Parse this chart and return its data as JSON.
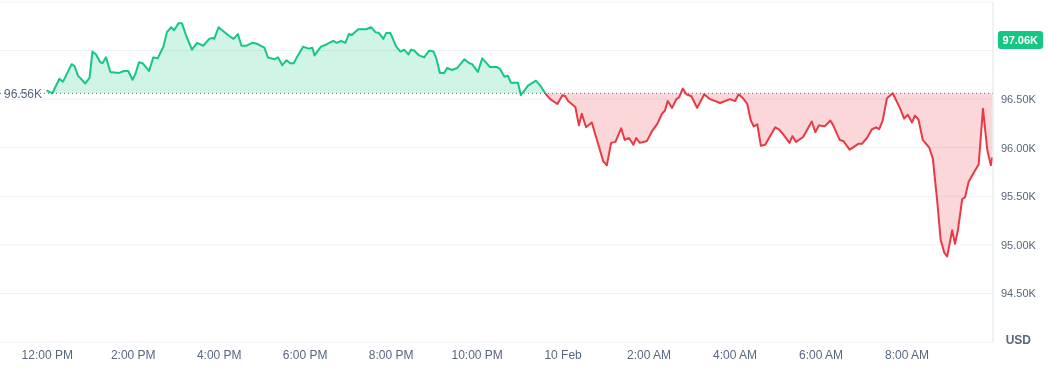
{
  "chart_data": {
    "type": "area",
    "ylabel": "USD",
    "grid": "y",
    "xlim": [
      "--02-09T10:54",
      "--02-10T10:00"
    ],
    "ylim": [
      94.0,
      97.5
    ],
    "xticks": [
      {
        "value": "--02-09T12:00",
        "label": "12:00 PM"
      },
      {
        "value": "--02-09T14:00",
        "label": "2:00 PM"
      },
      {
        "value": "--02-09T16:00",
        "label": "4:00 PM"
      },
      {
        "value": "--02-09T18:00",
        "label": "6:00 PM"
      },
      {
        "value": "--02-09T20:00",
        "label": "8:00 PM"
      },
      {
        "value": "--02-09T22:00",
        "label": "10:00 PM"
      },
      {
        "value": "--02-10T00:00",
        "label": "10 Feb"
      },
      {
        "value": "--02-10T02:00",
        "label": "2:00 AM"
      },
      {
        "value": "--02-10T04:00",
        "label": "4:00 AM"
      },
      {
        "value": "--02-10T06:00",
        "label": "6:00 AM"
      },
      {
        "value": "--02-10T08:00",
        "label": "8:00 AM"
      }
    ],
    "yticks": [
      {
        "value": 94.5,
        "label": "94.50K"
      },
      {
        "value": 95,
        "label": "95.00K"
      },
      {
        "value": 95.5,
        "label": "95.50K"
      },
      {
        "value": 96,
        "label": "96.00K"
      },
      {
        "value": 96.5,
        "label": "96.50K"
      },
      {
        "value": 97,
        "label": null
      }
    ],
    "ref_lines": [
      {
        "axis": "y",
        "value": 96.56,
        "label": "96.56K",
        "color": "#58667e",
        "line_style": "dotted"
      }
    ],
    "annotations": [
      "97.06K"
    ],
    "series": [
      {
        "color": "#16c784",
        "x": [
          "--02-09T11:59",
          "--02-09T12:07",
          "--02-09T12:17",
          "--02-09T12:22",
          "--02-09T12:34",
          "--02-09T12:38",
          "--02-09T12:43",
          "--02-09T12:47",
          "--02-09T12:53",
          "--02-09T12:59",
          "--02-09T13:03",
          "--02-09T13:08",
          "--02-09T13:14",
          "--02-09T13:17",
          "--02-09T13:22",
          "--02-09T13:28",
          "--02-09T13:40",
          "--02-09T13:47",
          "--02-09T13:53",
          "--02-09T13:59",
          "--02-09T14:03",
          "--02-09T14:08",
          "--02-09T14:13",
          "--02-09T14:20",
          "--02-09T14:22",
          "--02-09T14:28",
          "--02-09T14:34",
          "--02-09T14:42",
          "--02-09T14:47",
          "--02-09T14:53",
          "--02-09T14:57",
          "--02-09T15:03",
          "--02-09T15:08",
          "--02-09T15:14",
          "--02-09T15:22",
          "--02-09T15:29",
          "--02-09T15:38",
          "--02-09T15:46",
          "--02-09T15:50",
          "--02-09T15:53",
          "--02-09T15:59",
          "--02-09T16:04",
          "--02-09T16:14",
          "--02-09T16:20",
          "--02-09T16:26",
          "--02-09T16:31",
          "--02-09T16:38",
          "--02-09T16:46",
          "--02-09T16:53",
          "--02-09T17:03",
          "--02-09T17:08",
          "--02-09T17:17",
          "--02-09T17:22",
          "--02-09T17:28",
          "--02-09T17:34",
          "--02-09T17:39",
          "--02-09T17:44",
          "--02-09T17:49",
          "--02-09T17:57",
          "--02-09T18:05",
          "--02-09T18:10",
          "--02-09T18:13",
          "--02-09T18:22",
          "--02-09T18:29",
          "--02-09T18:39",
          "--02-09T18:44",
          "--02-09T18:50",
          "--02-09T18:56",
          "--02-09T19:01",
          "--02-09T19:05",
          "--02-09T19:14",
          "--02-09T19:25",
          "--02-09T19:32",
          "--02-09T19:38",
          "--02-09T19:43",
          "--02-09T19:49",
          "--02-09T19:53",
          "--02-09T19:59",
          "--02-09T20:07",
          "--02-09T20:13",
          "--02-09T20:18",
          "--02-09T20:24",
          "--02-09T20:28",
          "--02-09T20:32",
          "--02-09T20:39",
          "--02-09T20:46",
          "--02-09T20:53",
          "--02-09T20:59",
          "--02-09T21:03",
          "--02-09T21:08",
          "--02-09T21:14",
          "--02-09T21:18",
          "--02-09T21:25",
          "--02-09T21:32",
          "--02-09T21:42",
          "--02-09T21:49",
          "--02-09T21:53",
          "--02-09T22:01",
          "--02-09T22:07",
          "--02-09T22:18",
          "--02-09T22:28",
          "--02-09T22:32",
          "--02-09T22:38",
          "--02-09T22:43",
          "--02-09T22:47",
          "--02-09T22:57",
          "--02-09T23:01",
          "--02-09T23:11",
          "--02-09T23:22",
          "--02-09T23:28",
          "--02-09T23:35"
        ],
        "values": [
          96.59,
          96.56,
          96.71,
          96.68,
          96.86,
          96.84,
          96.74,
          96.71,
          96.66,
          96.72,
          96.99,
          96.96,
          96.88,
          96.87,
          96.93,
          96.78,
          96.77,
          96.79,
          96.79,
          96.7,
          96.76,
          96.88,
          96.87,
          96.81,
          96.79,
          96.93,
          96.92,
          97.04,
          97.19,
          97.24,
          97.21,
          97.28,
          97.28,
          97.15,
          97.01,
          97.08,
          97.05,
          97.12,
          97.13,
          97.12,
          97.24,
          97.21,
          97.15,
          97.12,
          97.17,
          97.05,
          97.05,
          97.08,
          97.07,
          97.03,
          96.93,
          96.91,
          96.93,
          96.85,
          96.9,
          96.87,
          96.87,
          96.94,
          97.04,
          97.02,
          97.03,
          96.95,
          97.04,
          97.06,
          97.1,
          97.08,
          97.1,
          97.08,
          97.17,
          97.16,
          97.22,
          97.22,
          97.24,
          97.19,
          97.18,
          97.12,
          97.18,
          97.18,
          97.04,
          96.99,
          97.01,
          96.96,
          97.01,
          97.0,
          96.95,
          96.93,
          97.0,
          96.99,
          96.92,
          96.77,
          96.77,
          96.82,
          96.8,
          96.82,
          96.91,
          96.87,
          96.86,
          96.78,
          96.92,
          96.83,
          96.83,
          96.81,
          96.73,
          96.74,
          96.67,
          96.67,
          96.54,
          96.64,
          96.69,
          96.64,
          96.56
        ]
      },
      {
        "type": "line",
        "color": "#ea3943",
        "lower": [
          96.56,
          96.5,
          96.45,
          96.54,
          96.53,
          96.48,
          96.42,
          96.23,
          96.35,
          96.21,
          96.26,
          95.86,
          95.82,
          96.05,
          96.06,
          96.2,
          96.08,
          96.1,
          96.03,
          96.1,
          96.05,
          96.07,
          96.17,
          96.24,
          96.35,
          96.38,
          96.48,
          96.41,
          96.5,
          96.52,
          96.61,
          96.55,
          96.53,
          96.41,
          96.55,
          96.5,
          96.46,
          96.5,
          96.48,
          96.55,
          96.51,
          96.45,
          96.28,
          96.22,
          96.24,
          96.02,
          96.03,
          96.21,
          96.19,
          96.14,
          96.05,
          96.12,
          96.06,
          96.11,
          96.27,
          96.16,
          96.23,
          96.22,
          96.28,
          96.23,
          96.08,
          96.07,
          95.98,
          96.04,
          96.04,
          96.1,
          96.19,
          96.21,
          96.19,
          96.28,
          96.51,
          96.56,
          96.41,
          96.3,
          96.34,
          96.26,
          96.33,
          96.29,
          96.08,
          96.0,
          95.89,
          95.46,
          95.05,
          94.92,
          94.88,
          95.15,
          95.01,
          95.15,
          95.47,
          95.49,
          95.65,
          95.83,
          96.4,
          95.98,
          95.82,
          95.9
        ],
        "upper": [
          96.56,
          96.56,
          96.56,
          96.56,
          96.56,
          96.56,
          96.56,
          96.56,
          96.56,
          96.56,
          96.56,
          96.56,
          96.56,
          96.56,
          96.56,
          96.56,
          96.56,
          96.56,
          96.56,
          96.56,
          96.56,
          96.56,
          96.56,
          96.56,
          96.56,
          96.56,
          96.56,
          96.56,
          96.56,
          96.56,
          96.56,
          96.56,
          96.56,
          96.56,
          96.56,
          96.56,
          96.56,
          96.56,
          96.56,
          96.56,
          96.56,
          96.56,
          96.56,
          96.56,
          96.56,
          96.56,
          96.56,
          96.56,
          96.56,
          96.56,
          96.56,
          96.56,
          96.56,
          96.56,
          96.56,
          96.56,
          96.56,
          96.56,
          96.56,
          96.56,
          96.56,
          96.56,
          96.56,
          96.56,
          96.56,
          96.56,
          96.56,
          96.56,
          96.56,
          96.56,
          96.56,
          96.56,
          96.56,
          96.56,
          96.56,
          96.56,
          96.56,
          96.56,
          96.56,
          96.56,
          96.56,
          96.56,
          96.56,
          96.56,
          96.56,
          96.56,
          96.56,
          96.56,
          96.56,
          96.56,
          96.56,
          96.56,
          96.56,
          96.56,
          96.56,
          96.56
        ],
        "x": [
          "--02-09T23:35",
          "--02-09T23:42",
          "--02-09T23:52",
          "--02-09T23:59",
          "--02-10T00:03",
          "--02-10T00:07",
          "--02-10T00:17",
          "--02-10T00:22",
          "--02-10T00:26",
          "--02-10T00:32",
          "--02-10T00:40",
          "--02-10T00:56",
          "--02-10T01:01",
          "--02-10T01:07",
          "--02-10T01:13",
          "--02-10T01:21",
          "--02-10T01:26",
          "--02-10T01:32",
          "--02-10T01:38",
          "--02-10T01:42",
          "--02-10T01:47",
          "--02-10T01:57",
          "--02-10T02:04",
          "--02-10T02:11",
          "--02-10T02:18",
          "--02-10T02:22",
          "--02-10T02:26",
          "--02-10T02:32",
          "--02-10T02:38",
          "--02-10T02:42",
          "--02-10T02:47",
          "--02-10T02:52",
          "--02-10T02:59",
          "--02-10T03:07",
          "--02-10T03:17",
          "--02-10T03:25",
          "--02-10T03:39",
          "--02-10T03:53",
          "--02-10T04:00",
          "--02-10T04:05",
          "--02-10T04:11",
          "--02-10T04:17",
          "--02-10T04:22",
          "--02-10T04:26",
          "--02-10T04:31",
          "--02-10T04:36",
          "--02-10T04:42",
          "--02-10T04:56",
          "--02-10T05:01",
          "--02-10T05:07",
          "--02-10T05:16",
          "--02-10T05:20",
          "--02-10T05:25",
          "--02-10T05:35",
          "--02-10T05:47",
          "--02-10T05:52",
          "--02-10T05:57",
          "--02-10T06:05",
          "--02-10T06:13",
          "--02-10T06:17",
          "--02-10T06:26",
          "--02-10T06:31",
          "--02-10T06:40",
          "--02-10T06:52",
          "--02-10T06:57",
          "--02-10T07:04",
          "--02-10T07:11",
          "--02-10T07:17",
          "--02-10T07:21",
          "--02-10T07:26",
          "--02-10T07:32",
          "--02-10T07:40",
          "--02-10T07:50",
          "--02-10T07:56",
          "--02-10T08:01",
          "--02-10T08:07",
          "--02-10T08:11",
          "--02-10T08:16",
          "--02-10T08:22",
          "--02-10T08:31",
          "--02-10T08:36",
          "--02-10T08:42",
          "--02-10T08:47",
          "--02-10T08:52",
          "--02-10T08:56",
          "--02-10T09:03",
          "--02-10T09:07",
          "--02-10T09:11",
          "--02-10T09:17",
          "--02-10T09:21",
          "--02-10T09:26",
          "--02-10T09:40",
          "--02-10T09:46",
          "--02-10T09:52",
          "--02-10T09:57",
          "--02-10T09:59"
        ],
        "values": [
          96.56,
          96.5,
          96.45,
          96.54,
          96.53,
          96.48,
          96.42,
          96.23,
          96.35,
          96.21,
          96.26,
          95.86,
          95.82,
          96.05,
          96.06,
          96.2,
          96.08,
          96.1,
          96.03,
          96.1,
          96.05,
          96.07,
          96.17,
          96.24,
          96.35,
          96.38,
          96.48,
          96.41,
          96.5,
          96.52,
          96.61,
          96.55,
          96.53,
          96.41,
          96.55,
          96.5,
          96.46,
          96.5,
          96.48,
          96.55,
          96.51,
          96.45,
          96.28,
          96.22,
          96.24,
          96.02,
          96.03,
          96.21,
          96.19,
          96.14,
          96.05,
          96.12,
          96.06,
          96.11,
          96.27,
          96.16,
          96.23,
          96.22,
          96.28,
          96.23,
          96.08,
          96.07,
          95.98,
          96.04,
          96.04,
          96.1,
          96.19,
          96.21,
          96.19,
          96.28,
          96.51,
          96.56,
          96.41,
          96.3,
          96.34,
          96.26,
          96.33,
          96.29,
          96.08,
          96.0,
          95.89,
          95.46,
          95.05,
          94.92,
          94.88,
          95.15,
          95.01,
          95.15,
          95.47,
          95.49,
          95.65,
          95.83,
          96.4,
          95.98,
          95.82,
          95.9
        ]
      }
    ]
  }
}
